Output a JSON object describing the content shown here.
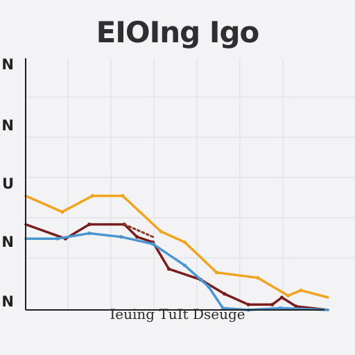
{
  "chart_data": {
    "type": "line",
    "title": "EIOIng Igo",
    "xlabel": "Ieuing TuIt Dseuge",
    "ylabel": "",
    "y_tick_labels": [
      "N",
      "N",
      "U",
      "N",
      "N"
    ],
    "x": [
      0,
      1,
      2,
      3,
      4,
      5,
      6,
      7,
      8,
      9,
      10,
      11,
      12,
      13,
      14,
      15,
      16,
      17,
      18,
      19
    ],
    "xlim": [
      0,
      19
    ],
    "ylim": [
      0,
      100
    ],
    "grid": true,
    "legend": "none",
    "series": [
      {
        "color": "#f0a41e",
        "points": [
          [
            0,
            64
          ],
          [
            2.3,
            55
          ],
          [
            4.2,
            64
          ],
          [
            6.1,
            64
          ],
          [
            8.5,
            44
          ],
          [
            10,
            38
          ],
          [
            12,
            21
          ],
          [
            14.6,
            18
          ],
          [
            16.5,
            8
          ],
          [
            17.3,
            11
          ],
          [
            19,
            7
          ]
        ]
      },
      {
        "color": "#7a1d1d",
        "points": [
          [
            0,
            48
          ],
          [
            2.5,
            40
          ],
          [
            4,
            48
          ],
          [
            6.2,
            48
          ],
          [
            7,
            41
          ],
          [
            8,
            38
          ],
          [
            9,
            23
          ],
          [
            11,
            17
          ],
          [
            12.5,
            9
          ],
          [
            14,
            3
          ],
          [
            15.5,
            3
          ],
          [
            16.1,
            7
          ],
          [
            17,
            2
          ],
          [
            19,
            0
          ]
        ]
      },
      {
        "color": "#4a96d2",
        "points": [
          [
            0,
            40
          ],
          [
            2,
            40
          ],
          [
            4,
            43
          ],
          [
            6,
            41
          ],
          [
            8,
            37
          ],
          [
            10,
            25
          ],
          [
            11.5,
            13
          ],
          [
            12.4,
            1
          ],
          [
            14,
            0
          ],
          [
            16,
            1
          ],
          [
            19,
            0
          ]
        ]
      },
      {
        "color": "#8b3a2a",
        "points": [
          [
            6.2,
            48
          ],
          [
            8,
            41
          ]
        ],
        "dashed": true
      }
    ]
  }
}
